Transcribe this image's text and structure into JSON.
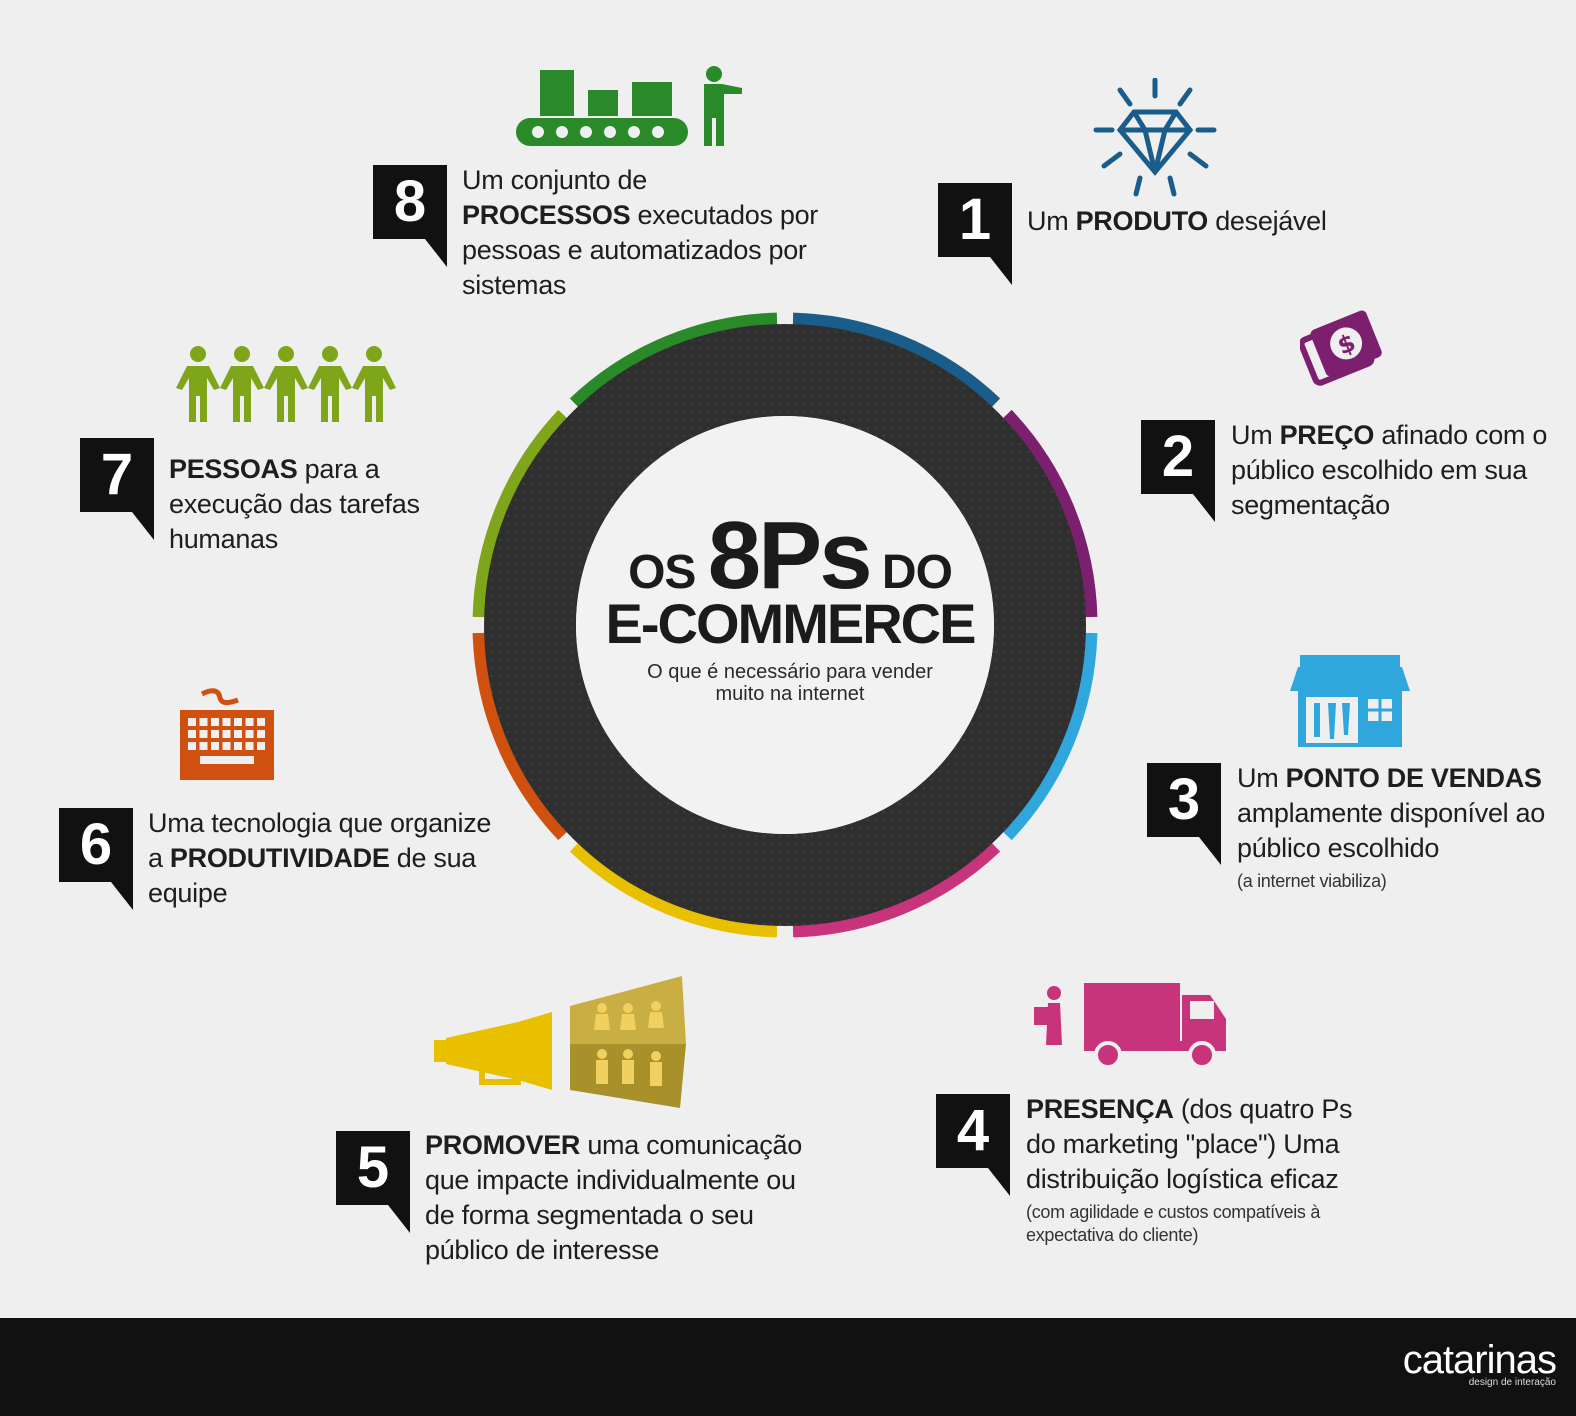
{
  "title": {
    "prefix": "OS",
    "number": "8Ps",
    "suffix": "DO",
    "line2": "E-COMMERCE",
    "subtitle_line1": "O que é necessário para vender",
    "subtitle_line2": "muito na internet"
  },
  "items": [
    {
      "num": "1",
      "bold": "PRODUTO",
      "before": "Um ",
      "after": " desejável",
      "color": "#1a5c8a",
      "icon": "diamond-icon"
    },
    {
      "num": "2",
      "bold": "PREÇO",
      "before": "Um ",
      "after": " afinado com o público escolhido em sua segmentação",
      "color": "#7b1f6e",
      "icon": "money-icon"
    },
    {
      "num": "3",
      "bold": "PONTO DE VENDAS",
      "before": "Um ",
      "after": " amplamente disponível ao público escolhido",
      "note": "(a internet viabiliza)",
      "color": "#2fa7dd",
      "icon": "store-icon"
    },
    {
      "num": "4",
      "bold": "PRESENÇA",
      "before": "",
      "after": " (dos quatro Ps do marketing \"place\") Uma distribuição logística eficaz",
      "note": "(com agilidade e custos compatíveis à expectativa do cliente)",
      "color": "#c7347b",
      "icon": "truck-icon"
    },
    {
      "num": "5",
      "bold": "PROMOVER",
      "before": "",
      "after": " uma comunicação que impacte individualmente ou de forma segmentada o seu público de interesse",
      "color": "#e8c000",
      "icon": "megaphone-icon"
    },
    {
      "num": "6",
      "bold": "PRODUTIVIDADE",
      "before": "Uma tecnologia que organize a ",
      "after": " de sua equipe",
      "color": "#d0500f",
      "icon": "keyboard-icon"
    },
    {
      "num": "7",
      "bold": "PESSOAS",
      "before": "",
      "after": " para a execução das tarefas humanas",
      "color": "#7fa51a",
      "icon": "people-icon"
    },
    {
      "num": "8",
      "bold": "PROCESSOS",
      "before": "Um conjunto de ",
      "after": " executados por pessoas e automatizados por sistemas",
      "color": "#2a8a2a",
      "icon": "conveyor-icon"
    }
  ],
  "footer": {
    "logo": "catarinas",
    "tagline": "design de interação"
  }
}
